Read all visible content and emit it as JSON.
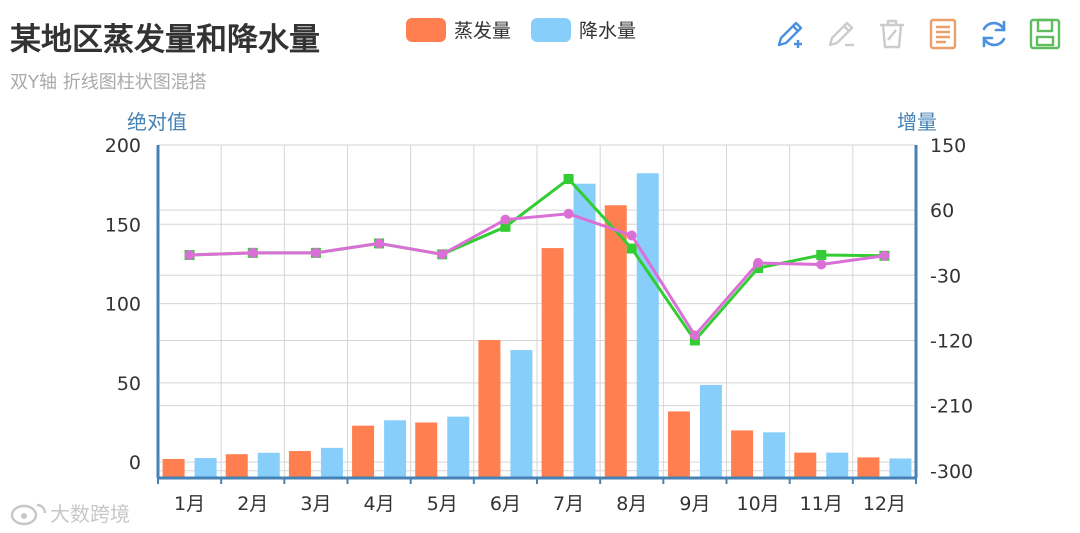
{
  "title": "某地区蒸发量和降水量",
  "subtitle": "双Y轴 折线图柱状图混搭",
  "watermark": "大数跨境",
  "legend": [
    {
      "name": "蒸发量",
      "color": "#ff7f50"
    },
    {
      "name": "降水量",
      "color": "#87cefa"
    }
  ],
  "toolbox": [
    {
      "icon": "pencil-plus-icon",
      "color": "#4a90e2"
    },
    {
      "icon": "pencil-minus-icon",
      "color": "#cccccc"
    },
    {
      "icon": "trash-icon",
      "color": "#cccccc"
    },
    {
      "icon": "document-icon",
      "color": "#e9a06b"
    },
    {
      "icon": "refresh-icon",
      "color": "#4a90e2"
    },
    {
      "icon": "save-icon",
      "color": "#5fbd5f"
    }
  ],
  "chart_data": {
    "type": "bar",
    "categories": [
      "1月",
      "2月",
      "3月",
      "4月",
      "5月",
      "6月",
      "7月",
      "8月",
      "9月",
      "10月",
      "11月",
      "12月"
    ],
    "y_left": {
      "label": "绝对值",
      "ticks": [
        "200",
        "150",
        "100",
        "50",
        "0"
      ],
      "range": [
        -10,
        200
      ]
    },
    "y_right": {
      "label": "增量",
      "ticks": [
        "150",
        "60",
        "-30",
        "-120",
        "-210",
        "-300"
      ],
      "range": [
        -310,
        150
      ]
    },
    "series": [
      {
        "name": "蒸发量",
        "type": "bar",
        "axis": "left",
        "color": "#ff7f50",
        "values": [
          2,
          5,
          7,
          23,
          25,
          77,
          135,
          162,
          32,
          20,
          6,
          3
        ]
      },
      {
        "name": "降水量",
        "type": "bar",
        "axis": "left",
        "color": "#87cefa",
        "values": [
          2.6,
          5.9,
          9,
          26.4,
          28.7,
          70.7,
          175.6,
          182.2,
          48.7,
          18.8,
          6,
          2.3
        ]
      },
      {
        "type": "line",
        "axis": "right",
        "color": "#32cd32",
        "values": [
          -2,
          1,
          1,
          14,
          -1,
          37,
          103,
          7,
          -120,
          -20,
          -2,
          -3
        ]
      },
      {
        "type": "line",
        "axis": "right",
        "color": "#da70d6",
        "values": [
          -2,
          1,
          1,
          14,
          -1,
          47,
          55,
          25,
          -113,
          -13,
          -15,
          -3
        ]
      }
    ],
    "grid": true
  }
}
